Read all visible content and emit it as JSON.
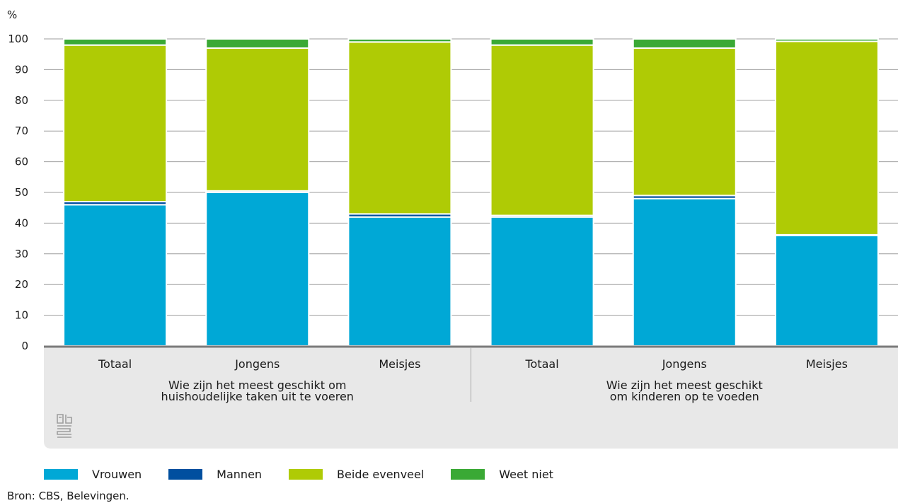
{
  "unit_label": "%",
  "source": "Bron: CBS, Belevingen.",
  "colors": {
    "vrouwen": "#00a8d6",
    "mannen": "#004f9f",
    "beide": "#afcb05",
    "weet_niet": "#3aa935",
    "panel": "#e8e8e8",
    "grid": "#9e9e9e",
    "axis": "#7a7a7a",
    "logo": "#9e9e9e"
  },
  "logo_icon": "cbs-logo-icon",
  "chart_data": {
    "type": "bar",
    "stacked": true,
    "ylim": [
      0,
      100
    ],
    "yticks": [
      0,
      10,
      20,
      30,
      40,
      50,
      60,
      70,
      80,
      90,
      100
    ],
    "ylabel": "%",
    "grid": true,
    "legend_position": "bottom",
    "categories": [
      "Totaal",
      "Jongens",
      "Meisjes",
      "Totaal",
      "Jongens",
      "Meisjes"
    ],
    "groups": [
      {
        "label_lines": [
          "Wie zijn het meest geschikt om",
          "huishoudelijke taken uit te voeren"
        ],
        "indices": [
          0,
          1,
          2
        ]
      },
      {
        "label_lines": [
          "Wie zijn het meest geschikt",
          "om kinderen op te voeden"
        ],
        "indices": [
          3,
          4,
          5
        ]
      }
    ],
    "series": [
      {
        "name": "Vrouwen",
        "key": "vrouwen",
        "values": [
          46,
          50,
          42,
          42,
          48,
          36
        ]
      },
      {
        "name": "Mannen",
        "key": "mannen",
        "values": [
          1,
          0.5,
          1,
          0.5,
          1,
          0.2
        ]
      },
      {
        "name": "Beide evenveel",
        "key": "beide",
        "values": [
          51,
          46.5,
          56,
          55.5,
          48,
          63
        ]
      },
      {
        "name": "Weet niet",
        "key": "weet_niet",
        "values": [
          2,
          3,
          1,
          2,
          3,
          0.8
        ]
      }
    ]
  }
}
